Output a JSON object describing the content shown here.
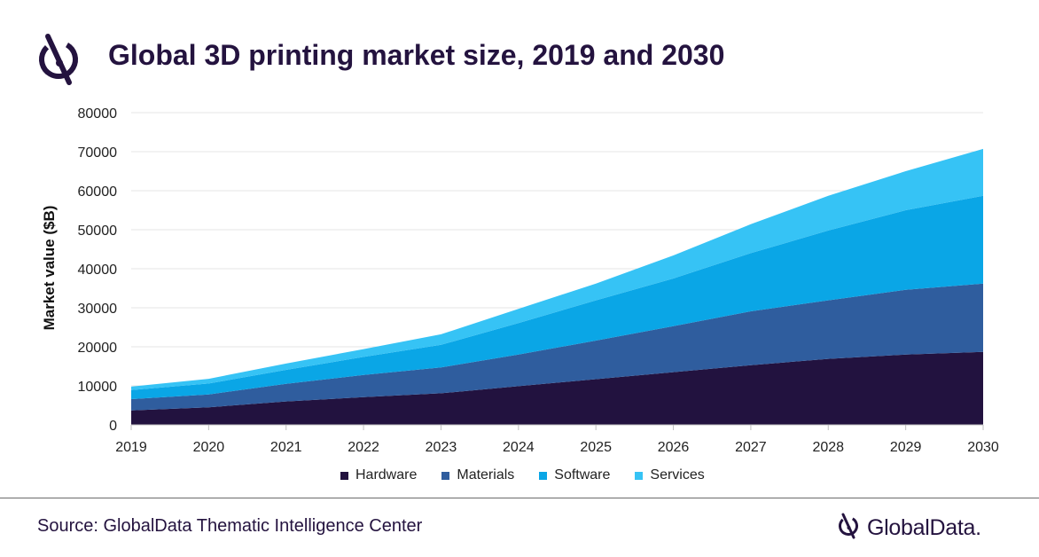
{
  "header": {
    "title": "Global 3D printing market size, 2019 and 2030",
    "logo_icon": "globaldata-mark-icon"
  },
  "colors": {
    "text_dark": "#24133f",
    "hardware": "#22123f",
    "materials": "#2f5d9e",
    "software": "#0aa6e6",
    "services": "#36c3f5",
    "gridline": "#e6e6e6"
  },
  "chart_data": {
    "type": "area",
    "stacked": true,
    "title": "Global 3D printing market size, 2019 and 2030",
    "xlabel": "",
    "ylabel": "Market value ($B)",
    "x": [
      "2019",
      "2020",
      "2021",
      "2022",
      "2023",
      "2024",
      "2025",
      "2026",
      "2027",
      "2028",
      "2029",
      "2030"
    ],
    "ylim": [
      0,
      80000
    ],
    "yticks": [
      0,
      10000,
      20000,
      30000,
      40000,
      50000,
      60000,
      70000,
      80000
    ],
    "grid": true,
    "legend_position": "bottom",
    "series": [
      {
        "name": "Hardware",
        "color": "#22123f",
        "values": [
          3700,
          4500,
          6000,
          7100,
          8100,
          9900,
          11700,
          13500,
          15300,
          16900,
          18000,
          18700
        ]
      },
      {
        "name": "Materials",
        "color": "#2f5d9e",
        "values": [
          2900,
          3300,
          4500,
          5700,
          6600,
          8100,
          9900,
          11800,
          13800,
          15000,
          16600,
          17500
        ]
      },
      {
        "name": "Software",
        "color": "#0aa6e6",
        "values": [
          2300,
          2800,
          3600,
          4600,
          5800,
          8100,
          10300,
          12200,
          14900,
          17900,
          20400,
          22500
        ]
      },
      {
        "name": "Services",
        "color": "#36c3f5",
        "values": [
          900,
          1200,
          1600,
          2000,
          2700,
          3600,
          4300,
          5900,
          7400,
          8900,
          10000,
          12000
        ]
      }
    ]
  },
  "footer": {
    "source": "Source: GlobalData Thematic Intelligence Center",
    "brand_name": "GlobalData.",
    "brand_icon": "globaldata-mark-icon"
  }
}
